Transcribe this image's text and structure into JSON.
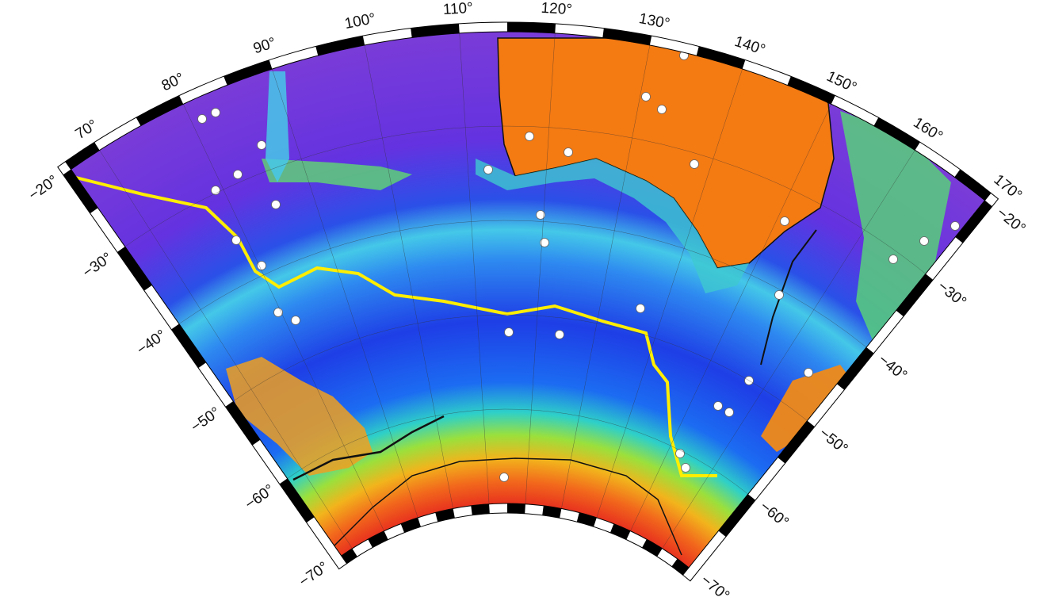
{
  "map": {
    "longitude_labels": [
      {
        "value": 70,
        "label": "70°"
      },
      {
        "value": 80,
        "label": "80°"
      },
      {
        "value": 90,
        "label": "90°"
      },
      {
        "value": 100,
        "label": "100°"
      },
      {
        "value": 110,
        "label": "110°"
      },
      {
        "value": 120,
        "label": "120°"
      },
      {
        "value": 130,
        "label": "130°"
      },
      {
        "value": 140,
        "label": "140°"
      },
      {
        "value": 150,
        "label": "150°"
      },
      {
        "value": 160,
        "label": "160°"
      },
      {
        "value": 170,
        "label": "170°"
      }
    ],
    "latitude_labels_left": [
      {
        "value": -20,
        "label": "−20°"
      },
      {
        "value": -30,
        "label": "−30°"
      },
      {
        "value": -40,
        "label": "−40°"
      },
      {
        "value": -50,
        "label": "−50°"
      },
      {
        "value": -60,
        "label": "−60°"
      },
      {
        "value": -70,
        "label": "−70°"
      }
    ],
    "latitude_labels_right": [
      {
        "value": -20,
        "label": "−20°"
      },
      {
        "value": -30,
        "label": "−30°"
      },
      {
        "value": -40,
        "label": "−40°"
      },
      {
        "value": -50,
        "label": "−50°"
      },
      {
        "value": -60,
        "label": "−60°"
      },
      {
        "value": -70,
        "label": "−70°"
      }
    ]
  }
}
